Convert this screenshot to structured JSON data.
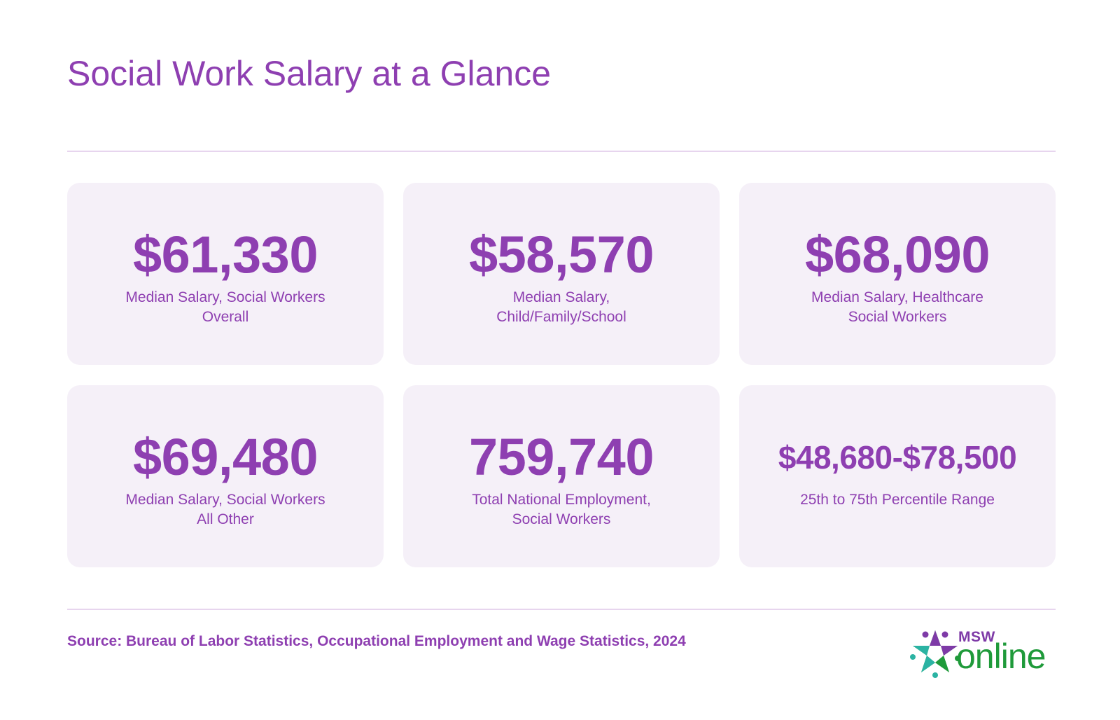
{
  "title": "Social Work Salary at a Glance",
  "cards": [
    {
      "value": "$61,330",
      "label": "Median Salary, Social Workers Overall"
    },
    {
      "value": "$58,570",
      "label": "Median Salary, Child/Family/School"
    },
    {
      "value": "$68,090",
      "label": "Median Salary, Healthcare Social Workers"
    },
    {
      "value": "$69,480",
      "label": "Median Salary, Social Workers All Other"
    },
    {
      "value": "759,740",
      "label": "Total National Employment, Social Workers"
    },
    {
      "value": "$48,680-$78,500",
      "label": "25th to 75th Percentile Range"
    }
  ],
  "source": "Source: Bureau of Labor Statistics, Occupational Employment and Wage Statistics, 2024",
  "logo": {
    "msw": "MSW",
    "online": "online",
    "icon": "star-people-icon",
    "colors": {
      "purple": "#7e3aa7",
      "green": "#1f9a3a",
      "teal": "#2bb3a3"
    }
  },
  "colors": {
    "accent": "#8e3fb1",
    "card_bg": "#f5f0f8",
    "divider": "#e7d5ee"
  }
}
